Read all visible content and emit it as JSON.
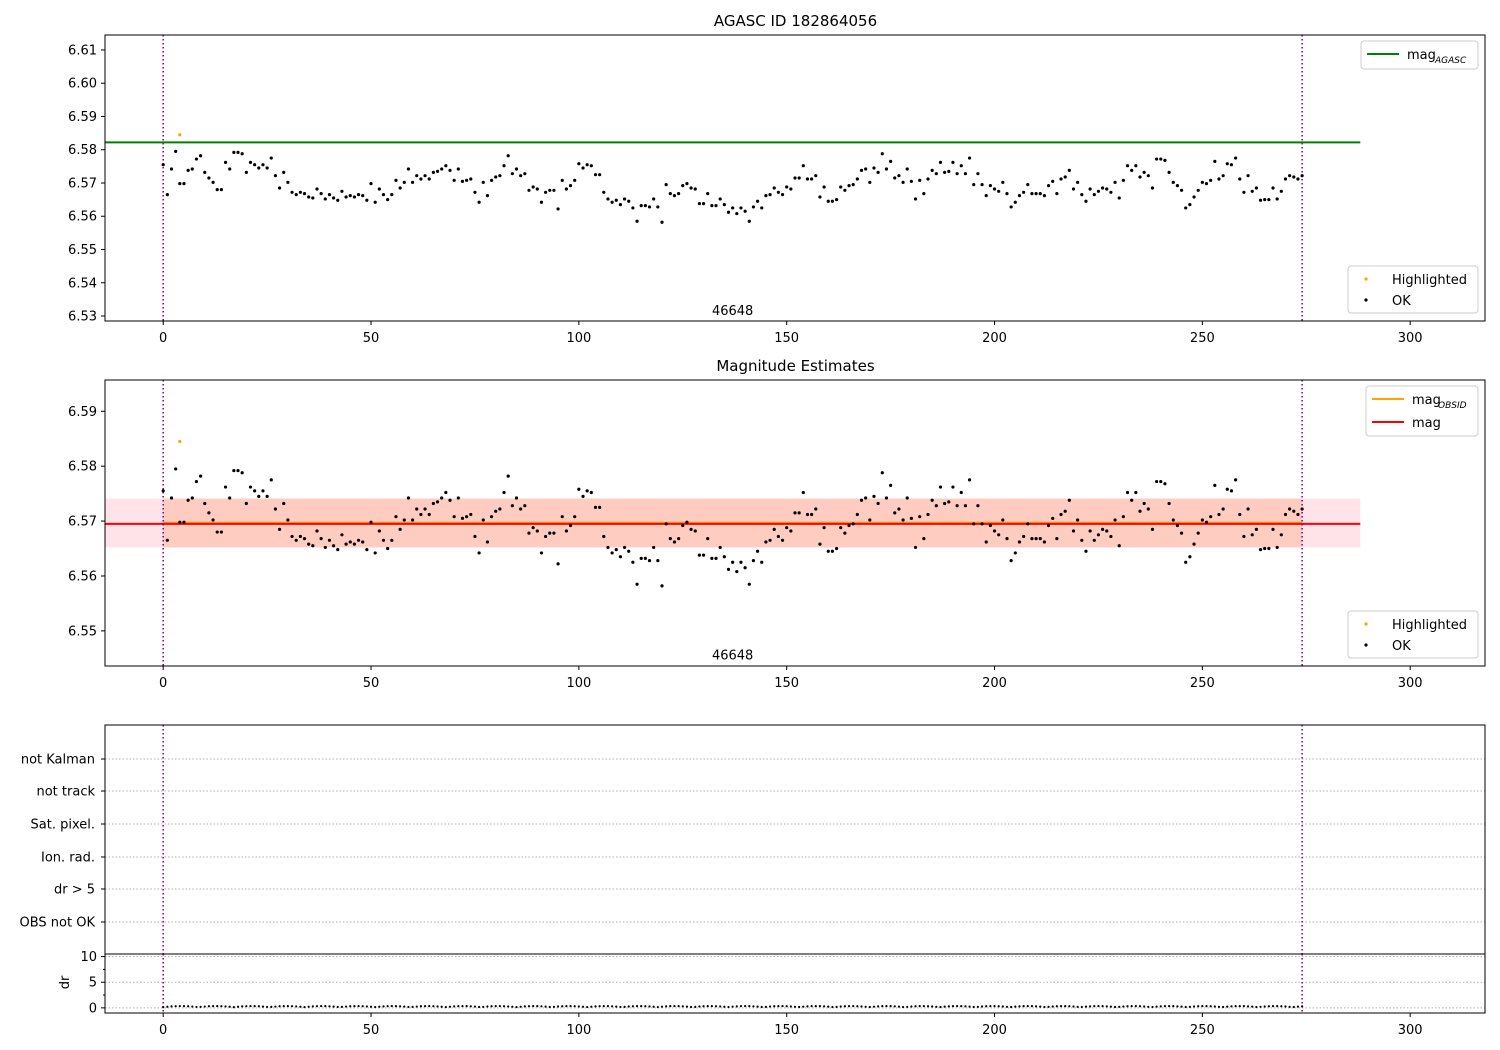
{
  "figure": {
    "background": "#ffffff"
  },
  "chart_data": [
    {
      "type": "scatter",
      "title": "AGASC ID 182864056",
      "xlim": [
        -14,
        318
      ],
      "ylim": [
        6.5285,
        6.6145
      ],
      "x_ticks": [
        0,
        50,
        100,
        150,
        200,
        250,
        300
      ],
      "y_ticks": [
        6.53,
        6.54,
        6.55,
        6.56,
        6.57,
        6.58,
        6.59,
        6.6,
        6.61
      ],
      "y_tick_labels": [
        "6.53",
        "6.54",
        "6.55",
        "6.56",
        "6.57",
        "6.58",
        "6.59",
        "6.60",
        "6.61"
      ],
      "vlines": [
        0,
        274
      ],
      "vline_color": "#800080",
      "obsid_label": {
        "x": 137,
        "y": 6.5315,
        "text": "46648"
      },
      "ref_line": {
        "value": 6.5822,
        "x_range": [
          -14,
          288
        ],
        "color": "#008000",
        "legend": "mag",
        "legend_sub": "AGASC"
      },
      "series": [
        {
          "name": "Highlighted",
          "color": "#ffa500",
          "x": [
            4
          ],
          "y": [
            6.5845
          ]
        },
        {
          "name": "OK",
          "color": "#000000",
          "x": "shared",
          "y": "shared"
        }
      ]
    },
    {
      "type": "scatter",
      "title": "Magnitude Estimates",
      "xlim": [
        -14,
        318
      ],
      "ylim": [
        6.5436,
        6.5957
      ],
      "x_ticks": [
        0,
        50,
        100,
        150,
        200,
        250,
        300
      ],
      "y_ticks": [
        6.55,
        6.56,
        6.57,
        6.58,
        6.59
      ],
      "y_tick_labels": [
        "6.55",
        "6.56",
        "6.57",
        "6.58",
        "6.59"
      ],
      "vlines": [
        0,
        274
      ],
      "vline_color": "#800080",
      "obsid_label": {
        "x": 137,
        "y": 6.5455,
        "text": "46648"
      },
      "mean_line": {
        "value": 6.5695,
        "x_range": [
          -14,
          288
        ],
        "color": "#ff0000",
        "legend": "mag"
      },
      "obsid_line": {
        "value": 6.5697,
        "color": "#ffa500",
        "legend": "mag",
        "legend_sub": "OBSID"
      },
      "band_outer": {
        "low": 6.5652,
        "high": 6.5741,
        "x_range": [
          -14,
          288
        ],
        "color": "#ffc0cb"
      },
      "band_inner": {
        "low": 6.5652,
        "high": 6.5741,
        "x_range": [
          0,
          274
        ],
        "color": "#ffa07a"
      },
      "series": [
        {
          "name": "Highlighted",
          "color": "#ffa500",
          "x": [
            4
          ],
          "y": [
            6.5845
          ]
        },
        {
          "name": "OK",
          "color": "#000000",
          "x": "shared",
          "y": "shared"
        }
      ]
    },
    {
      "type": "flags",
      "xlim": [
        -14,
        318
      ],
      "flag_labels": [
        "not Kalman",
        "not track",
        "Sat. pixel.",
        "Ion. rad.",
        "dr > 5",
        "OBS not OK"
      ],
      "vlines": [
        0,
        274
      ]
    },
    {
      "type": "line",
      "ylabel": "dr",
      "xlim": [
        -14,
        318
      ],
      "ylim": [
        -1,
        10.5
      ],
      "x_ticks": [
        0,
        50,
        100,
        150,
        200,
        250,
        300
      ],
      "y_ticks": [
        0,
        5,
        10
      ],
      "y_tick_labels": [
        "0",
        "5",
        "10"
      ],
      "vlines": [
        0,
        274
      ],
      "dr_values": "small"
    }
  ],
  "ok_points": {
    "y": [
      6.5755,
      6.5665,
      6.5742,
      6.5795,
      6.5698,
      6.5698,
      6.5738,
      6.5742,
      6.5772,
      6.5782,
      6.5732,
      6.5715,
      6.5702,
      6.568,
      6.568,
      6.5762,
      6.5742,
      6.5792,
      6.5792,
      6.5788,
      6.5732,
      6.5762,
      6.5755,
      6.5745,
      6.5755,
      6.5745,
      6.5775,
      6.5722,
      6.5685,
      6.5732,
      6.5702,
      6.5672,
      6.5665,
      6.5672,
      6.5668,
      6.5658,
      6.5655,
      6.5682,
      6.5668,
      6.5652,
      6.5665,
      6.5655,
      6.5648,
      6.5675,
      6.5658,
      6.5662,
      6.5658,
      6.5665,
      6.5662,
      6.5648,
      6.5698,
      6.5642,
      6.5682,
      6.5665,
      6.565,
      6.5665,
      6.5708,
      6.5685,
      6.5702,
      6.5742,
      6.5702,
      6.5722,
      6.5712,
      6.5722,
      6.5712,
      6.5732,
      6.5735,
      6.5742,
      6.5752,
      6.5738,
      6.5708,
      6.5742,
      6.5705,
      6.5708,
      6.5712,
      6.5672,
      6.5642,
      6.5702,
      6.5662,
      6.5708,
      6.5718,
      6.5722,
      6.5752,
      6.5782,
      6.5728,
      6.5742,
      6.5722,
      6.5728,
      6.5678,
      6.5688,
      6.5682,
      6.5642,
      6.5672,
      6.5678,
      6.5678,
      6.5622,
      6.5708,
      6.5682,
      6.5692,
      6.5708,
      6.5758,
      6.5745,
      6.5755,
      6.5752,
      6.5725,
      6.5725,
      6.5672,
      6.5652,
      6.5642,
      6.5648,
      6.5635,
      6.5652,
      6.5645,
      6.5625,
      6.5585,
      6.5632,
      6.5632,
      6.5628,
      6.5652,
      6.5628,
      6.5582,
      6.5695,
      6.5668,
      6.5662,
      6.5668,
      6.5692,
      6.5698,
      6.5685,
      6.5682,
      6.5638,
      6.5638,
      6.5668,
      6.5632,
      6.5632,
      6.5652,
      6.5635,
      6.5612,
      6.5625,
      6.5608,
      6.5625,
      6.5615,
      6.5585,
      6.5628,
      6.5645,
      6.5625,
      6.5662,
      6.5665,
      6.5685,
      6.5672,
      6.5665,
      6.5688,
      6.5682,
      6.5715,
      6.5715,
      6.5752,
      6.5712,
      6.5712,
      6.5722,
      6.5658,
      6.5688,
      6.5645,
      6.5645,
      6.565,
      6.5688,
      6.5678,
      6.5692,
      6.5695,
      6.5712,
      6.5738,
      6.5742,
      6.5702,
      6.5745,
      6.5732,
      6.5788,
      6.5742,
      6.5765,
      6.5715,
      6.5722,
      6.5702,
      6.5742,
      6.5705,
      6.5652,
      6.5708,
      6.5668,
      6.5712,
      6.5738,
      6.5728,
      6.5762,
      6.5732,
      6.5735,
      6.5762,
      6.5728,
      6.5752,
      6.5728,
      6.5775,
      6.5695,
      6.5728,
      6.5695,
      6.5662,
      6.5692,
      6.5682,
      6.5675,
      6.5702,
      6.5668,
      6.5628,
      6.5642,
      6.5662,
      6.5672,
      6.5695,
      6.5668,
      6.5668,
      6.5668,
      6.5662,
      6.5692,
      6.5705,
      6.5668,
      6.5712,
      6.5718,
      6.5738,
      6.5682,
      6.5702,
      6.5665,
      6.5645,
      6.5682,
      6.5665,
      6.5675,
      6.5685,
      6.5682,
      6.5672,
      6.5702,
      6.5655,
      6.5708,
      6.5752,
      6.5738,
      6.5752,
      6.5718,
      6.5732,
      6.5722,
      6.5685,
      6.5772,
      6.5772,
      6.5768,
      6.5732,
      6.5702,
      6.5692,
      6.5678,
      6.5625,
      6.5635,
      6.5658,
      6.5678,
      6.5702,
      6.5698,
      6.5708,
      6.5765,
      6.5712,
      6.5722,
      6.5758,
      6.5755,
      6.5775,
      6.5712,
      6.5672,
      6.5722,
      6.5675,
      6.5685,
      6.5648,
      6.565,
      6.565,
      6.5685,
      6.5652,
      6.5675,
      6.5712,
      6.5722,
      6.5718,
      6.5712,
      6.5722
    ]
  },
  "legend": {
    "ref_main": "mag",
    "ref_sub": "AGASC",
    "obsid_main": "mag",
    "obsid_sub": "OBSID",
    "mean_label": "mag",
    "highlighted": "Highlighted",
    "ok": "OK"
  }
}
